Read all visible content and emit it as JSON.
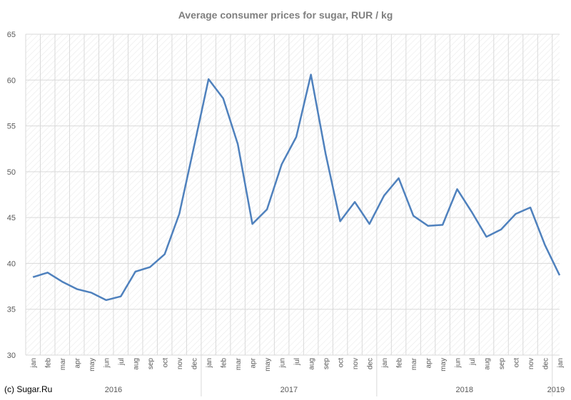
{
  "chart_data": {
    "type": "line",
    "title": "Average consumer prices for sugar, RUR / kg",
    "xlabel": "",
    "ylabel": "",
    "ylim": [
      30,
      65
    ],
    "y_ticks": [
      30,
      35,
      40,
      45,
      50,
      55,
      60,
      65
    ],
    "grid": true,
    "legend": "none",
    "categories": [
      "jan",
      "feb",
      "mar",
      "apr",
      "may",
      "jun",
      "jul",
      "aug",
      "sep",
      "oct",
      "nov",
      "dec",
      "jan",
      "feb",
      "mar",
      "apr",
      "may",
      "jun",
      "jul",
      "aug",
      "sep",
      "oct",
      "nov",
      "dec",
      "jan",
      "feb",
      "mar",
      "apr",
      "may",
      "jun",
      "jul",
      "aug",
      "sep",
      "oct",
      "nov",
      "dec",
      "jan"
    ],
    "groups": [
      {
        "label": "2016",
        "count": 12
      },
      {
        "label": "2017",
        "count": 12
      },
      {
        "label": "2018",
        "count": 12
      },
      {
        "label": "2019",
        "count": 1
      }
    ],
    "series": [
      {
        "color": "#4f81bd",
        "values": [
          38.5,
          39.0,
          38.0,
          37.2,
          36.8,
          36.0,
          36.4,
          39.1,
          39.6,
          41.0,
          45.4,
          52.7,
          60.1,
          58.0,
          53.0,
          44.3,
          45.9,
          50.8,
          53.8,
          60.6,
          52.0,
          44.6,
          46.7,
          44.3,
          47.4,
          49.3,
          45.2,
          44.1,
          44.2,
          48.1,
          45.6,
          42.9,
          43.7,
          45.4,
          46.1,
          42.0,
          38.7
        ]
      }
    ]
  },
  "credit": "(c) Sugar.Ru",
  "colors": {
    "line": "#4f81bd",
    "grid": "#d9d9d9",
    "axis_text": "#595959",
    "title": "#7f7f7f"
  }
}
